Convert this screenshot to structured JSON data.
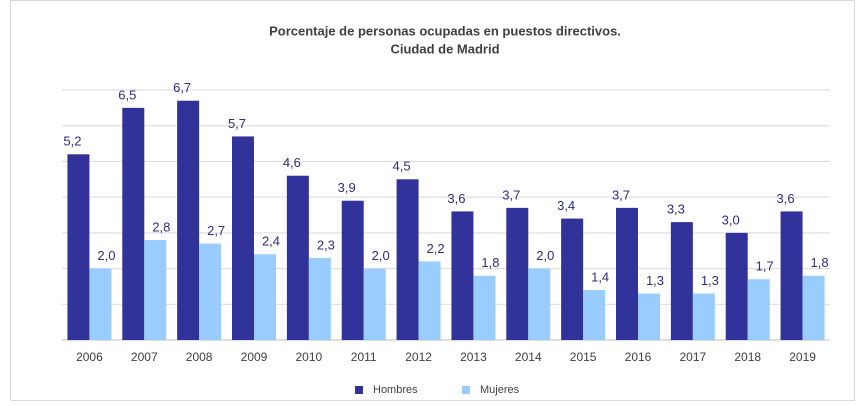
{
  "chart_data": {
    "type": "bar",
    "title": "Porcentaje de personas ocupadas en puestos directivos.",
    "subtitle": "Ciudad de Madrid",
    "categories": [
      "2006",
      "2007",
      "2008",
      "2009",
      "2010",
      "2011",
      "2012",
      "2013",
      "2014",
      "2015",
      "2016",
      "2017",
      "2018",
      "2019"
    ],
    "series": [
      {
        "name": "Hombres",
        "color": "#32329b",
        "values": [
          5.2,
          6.5,
          6.7,
          5.7,
          4.6,
          3.9,
          4.5,
          3.6,
          3.7,
          3.4,
          3.7,
          3.3,
          3.0,
          3.6
        ],
        "value_labels": [
          "5,2",
          "6,5",
          "6,7",
          "5,7",
          "4,6",
          "3,9",
          "4,5",
          "3,6",
          "3,7",
          "3,4",
          "3,7",
          "3,3",
          "3,0",
          "3,6"
        ]
      },
      {
        "name": "Mujeres",
        "color": "#99ccff",
        "values": [
          2.0,
          2.8,
          2.7,
          2.4,
          2.3,
          2.0,
          2.2,
          1.8,
          2.0,
          1.4,
          1.3,
          1.3,
          1.7,
          1.8
        ],
        "value_labels": [
          "2,0",
          "2,8",
          "2,7",
          "2,4",
          "2,3",
          "2,0",
          "2,2",
          "1,8",
          "2,0",
          "1,4",
          "1,3",
          "1,3",
          "1,7",
          "1,8"
        ]
      }
    ],
    "ylim": [
      0,
      7
    ],
    "yticks": [
      0,
      1,
      2,
      3,
      4,
      5,
      6,
      7
    ],
    "grid": true,
    "legend": "bottom"
  }
}
